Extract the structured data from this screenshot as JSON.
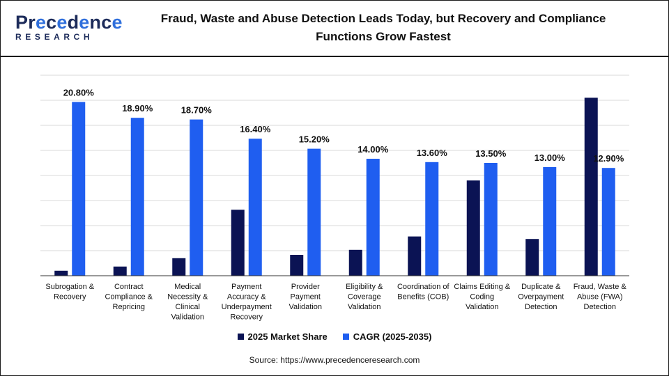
{
  "header": {
    "logo_text": "Precedence",
    "logo_sub": "RESEARCH",
    "title_line1": "Fraud, Waste and Abuse Detection Leads Today, but Recovery and Compliance",
    "title_line2": "Functions Grow Fastest"
  },
  "colors": {
    "market_share": "#0b1354",
    "cagr": "#1f5ef0",
    "grid": "#d9d9d9",
    "axis": "#333333"
  },
  "chart_data": {
    "type": "bar",
    "title": "Fraud, Waste and Abuse Detection Leads Today, but Recovery and Compliance Functions Grow Fastest",
    "categories": [
      [
        "Subrogation &",
        "Recovery"
      ],
      [
        "Contract",
        "Compliance &",
        "Repricing"
      ],
      [
        "Medical",
        "Necessity &",
        "Clinical",
        "Validation"
      ],
      [
        "Payment",
        "Accuracy &",
        "Underpayment",
        "Recovery"
      ],
      [
        "Provider",
        "Payment",
        "Validation"
      ],
      [
        "Eligibility &",
        "Coverage",
        "Validation"
      ],
      [
        "Coordination of",
        "Benefits (COB)"
      ],
      [
        "Claims Editing &",
        "Coding",
        "Validation"
      ],
      [
        "Duplicate &",
        "Overpayment",
        "Detection"
      ],
      [
        "Fraud, Waste &",
        "Abuse (FWA)",
        "Detection"
      ]
    ],
    "series": [
      {
        "name": "2025 Market Share",
        "values": [
          0.6,
          1.1,
          2.1,
          7.9,
          2.5,
          3.1,
          4.7,
          11.4,
          4.4,
          21.3
        ]
      },
      {
        "name": "CAGR (2025-2035)",
        "values": [
          20.8,
          18.9,
          18.7,
          16.4,
          15.2,
          14.0,
          13.6,
          13.5,
          13.0,
          12.9
        ],
        "labels": [
          "20.80%",
          "18.90%",
          "18.70%",
          "16.40%",
          "15.20%",
          "14.00%",
          "13.60%",
          "13.50%",
          "13.00%",
          "12.90%"
        ]
      }
    ],
    "ylim": [
      0,
      24
    ],
    "grid": true,
    "legend_position": "bottom-center"
  },
  "legend": {
    "market_share_label": "2025 Market Share",
    "cagr_label": "CAGR (2025-2035)"
  },
  "source": "Source: https://www.precedenceresearch.com"
}
